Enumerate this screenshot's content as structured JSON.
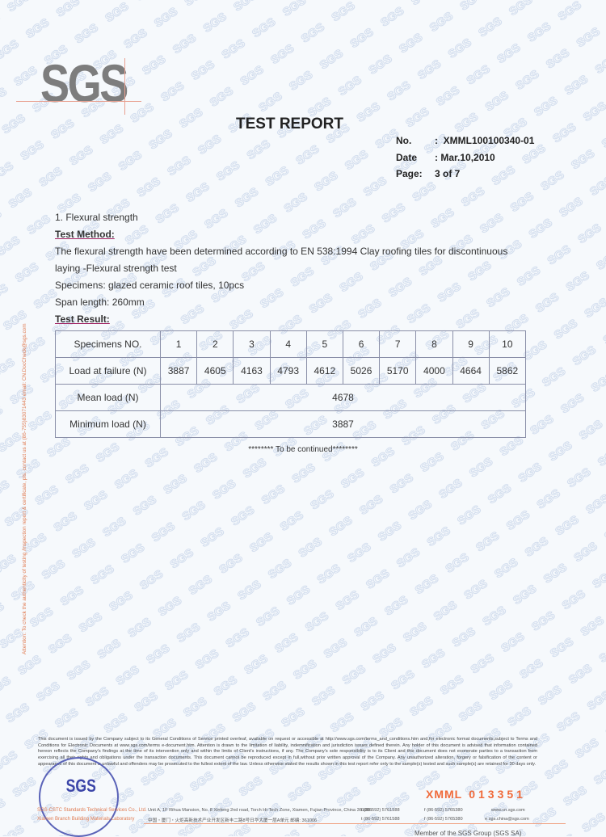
{
  "logo": "SGS",
  "title": "TEST REPORT",
  "meta": [
    {
      "label": "No.",
      "sep": ":",
      "value": "XMML100100340-01"
    },
    {
      "label": "Date",
      "sep": ":",
      "value": "Mar.10,2010"
    },
    {
      "label": "Page:",
      "sep": "",
      "value": "3 of 7"
    }
  ],
  "section": "1. Flexural strength",
  "method_heading": "Test Method:",
  "method_line1": "The flexural strength have been determined according to EN 538:1994 Clay roofing tiles for discontinuous",
  "method_line2": "laying -Flexural strength test",
  "specimens": "Specimens: glazed ceramic roof tiles, 10pcs",
  "span": "Span length: 260mm",
  "result_heading": "Test Result:",
  "table": {
    "row1_label": "Specimens NO.",
    "specimen_numbers": [
      "1",
      "2",
      "3",
      "4",
      "5",
      "6",
      "7",
      "8",
      "9",
      "10"
    ],
    "row2_label": "Load at failure (N)",
    "loads": [
      "3887",
      "4605",
      "4163",
      "4793",
      "4612",
      "5026",
      "5170",
      "4000",
      "4664",
      "5862"
    ],
    "mean_label": "Mean load (N)",
    "mean_value": "4678",
    "min_label": "Minimum load (N)",
    "min_value": "3887"
  },
  "continued": "******** To be continued********",
  "side_note": "Attention: To check the authenticity of testing /inspection report & certificate, pls. contact us at (86-755)83071443 email: CN.DocCheck@sgs.com",
  "disclaimer": "This document is issued by the Company subject to its General Conditions of Service printed overleaf, available on request or accessible at http://www.sgs.com/terms_and_conditions.htm and,for electronic format documents,subject to Terms and Conditions for Electronic Documents at www.sgs.com/terms e-document.htm. Attention is drawn to the limitation of liability, indemnification and jurisdiction issues defined therein. Any holder of this document is advised that information contained hereon reflects the Company's findings at the time of its intervention only and within the limits of Client's instructions, if any. The Company's sole responsibility is to its Client and this document does not exonerate parties to a transaction from exercising all their rights and obligations under the transaction documents. This document cannot be reproduced except in full,without prior written approval of the Company. Any unauthorized alteration, forgery or falsification of the content or appearance of this document is unlawful and offenders may be prosecuted to the fullest extent of the law. Unless otherwise stated the results shown in this test report refer only to the sample(s) tested and such sample(s) are retained for 30 days only.",
  "stamp": "SGS",
  "serial": {
    "prefix": "XMML",
    "number": "013351"
  },
  "footer": {
    "company1": "SGS-CSTC Standards Technical Services Co., Ltd.",
    "company2": "Xiamen Branch Building Materials Laboratory",
    "addr_en": "Unit A, 1F Rihua Mansion, No. 8 Xinfeng 2nd road, Torch Hi-Tech Zone, Xiamen, Fujian Province, China 361006",
    "addr_cn": "中国・厦门・火炬高新技术产业开发区新丰二路8号日华大厦一层A单元  邮编: 361006",
    "tel": "t (86-592) 5761588",
    "fax": "f (86-592) 5765380",
    "web": "www.cn.sgs.com",
    "email": "e sgs.china@sgs.com",
    "member": "Member of the SGS Group (SGS SA)"
  },
  "colors": {
    "watermark": "#c9d6ea",
    "accent": "#f06a3a",
    "stamp": "#3b45a8"
  }
}
